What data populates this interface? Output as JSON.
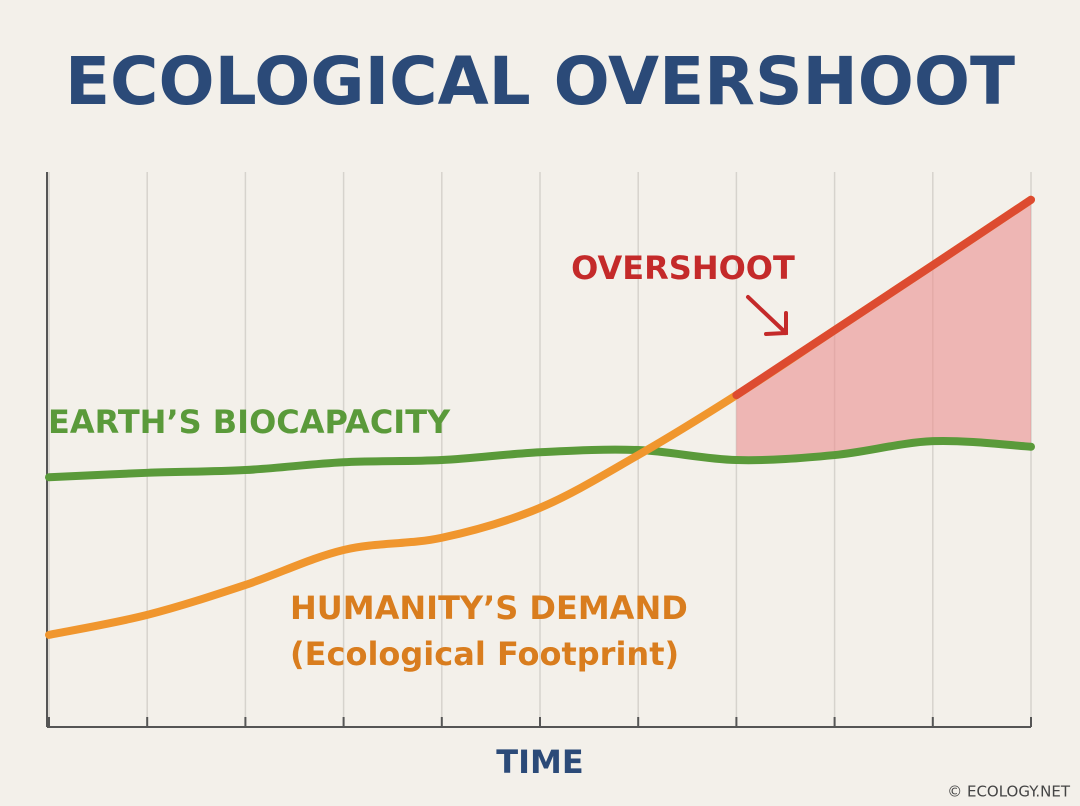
{
  "chart_data": {
    "type": "line",
    "title": "ECOLOGICAL OVERSHOOT",
    "x": [
      0,
      1,
      2,
      3,
      4,
      5,
      6,
      7,
      8,
      9,
      10
    ],
    "series": [
      {
        "name": "EARTH’S BIOCAPACITY",
        "color": "#5a9a3a",
        "values": [
          45,
          45.8,
          46.3,
          47.7,
          48.1,
          49.5,
          49.9,
          48.1,
          49,
          51.5,
          50.5
        ]
      },
      {
        "name": "HUMANITY’S DEMAND",
        "color": "#f0962e",
        "values": [
          16.6,
          20.2,
          25.6,
          31.9,
          34.1,
          39.5,
          49,
          59.8,
          71.5,
          83.2,
          95
        ]
      }
    ],
    "annotations": [
      "(Ecological Footprint)",
      "OVERSHOOT"
    ],
    "overshoot_color": "#dd4b30",
    "overshoot_fill": "#eb8f90",
    "xlabel": "TIME",
    "credit": "© ECOLOGY.NET",
    "xlim": [
      0,
      10
    ],
    "xticks": [
      0,
      1,
      2,
      3,
      4,
      5,
      6,
      7,
      8,
      9,
      10
    ],
    "ylim": [
      0,
      100
    ],
    "grid": true
  }
}
